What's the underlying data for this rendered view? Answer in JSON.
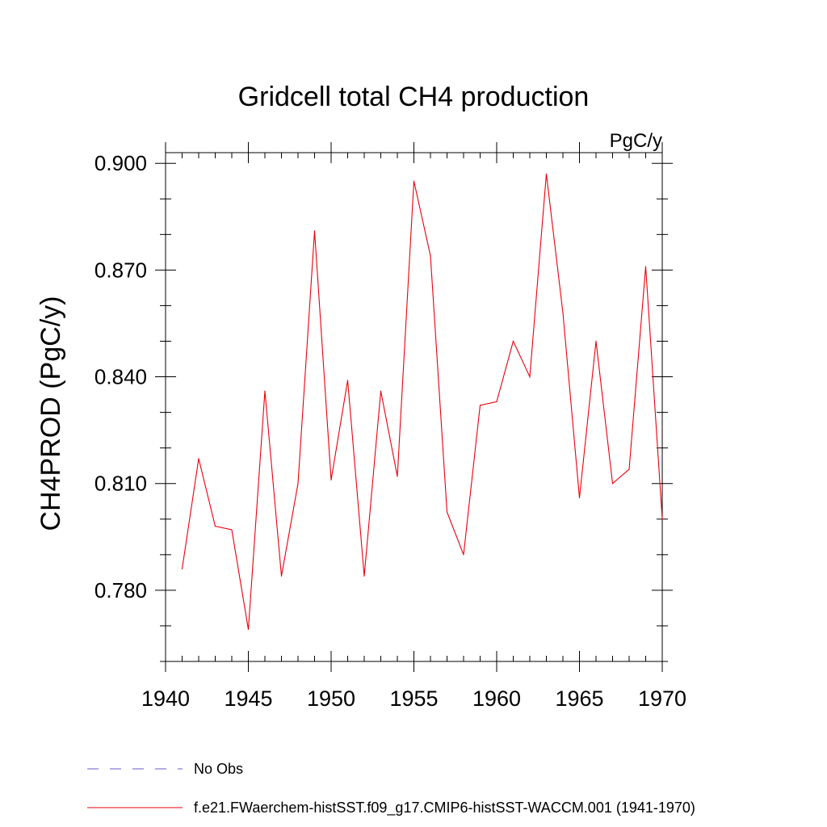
{
  "chart_data": {
    "type": "line",
    "title": "Gridcell total CH4 production",
    "units": "PgC/y",
    "ylabel": "CH4PROD  (PgC/y)",
    "xlabel": "",
    "xlim": [
      1940,
      1970
    ],
    "ylim": [
      0.76,
      0.903
    ],
    "x_ticks": [
      "1940",
      "1945",
      "1950",
      "1955",
      "1960",
      "1965",
      "1970"
    ],
    "y_ticks": [
      "0.780",
      "0.810",
      "0.840",
      "0.870",
      "0.900"
    ],
    "grid": false,
    "legend_placement": "bottom-left",
    "legend": [
      {
        "label": "No Obs",
        "color": "#6a5acd",
        "dash": true
      },
      {
        "label": "f.e21.FWaerchem-histSST.f09_g17.CMIP6-histSST-WACCM.001 (1941-1970)",
        "color": "#e8000b",
        "dash": false
      }
    ],
    "series": [
      {
        "color": "#e8000b",
        "x": [
          1941,
          1942,
          1943,
          1944,
          1945,
          1946,
          1947,
          1948,
          1949,
          1950,
          1951,
          1952,
          1953,
          1954,
          1955,
          1956,
          1957,
          1958,
          1959,
          1960,
          1961,
          1962,
          1963,
          1964,
          1965,
          1966,
          1967,
          1968,
          1969,
          1970
        ],
        "values": [
          0.786,
          0.817,
          0.798,
          0.797,
          0.769,
          0.836,
          0.784,
          0.81,
          0.881,
          0.811,
          0.839,
          0.784,
          0.836,
          0.812,
          0.895,
          0.874,
          0.802,
          0.79,
          0.832,
          0.833,
          0.85,
          0.84,
          0.897,
          0.858,
          0.806,
          0.85,
          0.81,
          0.814,
          0.871,
          0.8
        ]
      }
    ]
  }
}
